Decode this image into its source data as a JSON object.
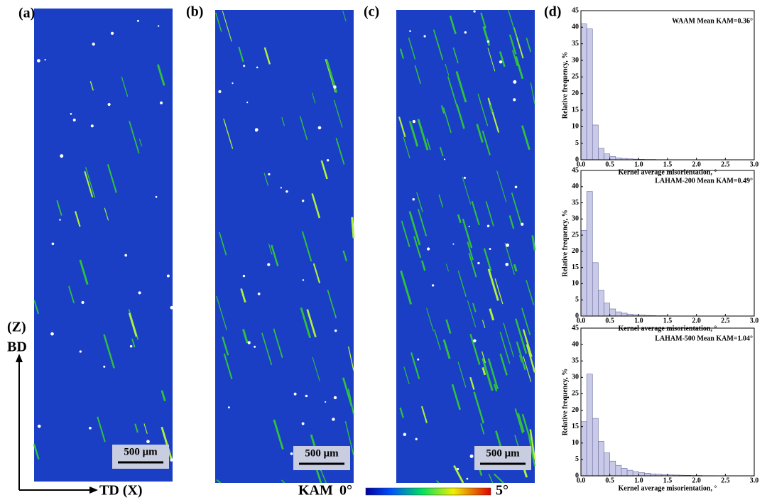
{
  "panels": [
    {
      "label": "(a)",
      "scale_bar": "500 μm"
    },
    {
      "label": "(b)",
      "scale_bar": "500 μm"
    },
    {
      "label": "(c)",
      "scale_bar": "500 μm"
    }
  ],
  "orientation": {
    "z": "(Z)",
    "bd": "BD",
    "td": "TD (X)"
  },
  "colorbar": {
    "label": "KAM",
    "min": "0°",
    "max": "5°"
  },
  "panel_d_label": "(d)",
  "chart_data": [
    {
      "type": "histogram",
      "title": "WAAM Mean KAM=0.36°",
      "xlabel": "Kernel average misorientation, °",
      "ylabel": "Relative frequency, %",
      "bins": [
        0,
        0.1,
        0.2,
        0.3,
        0.4,
        0.5,
        0.6,
        0.7,
        0.8,
        0.9,
        1.0,
        1.1,
        1.2,
        1.3,
        1.4,
        1.5,
        1.6,
        1.7,
        1.8,
        1.9,
        2.0,
        2.1,
        2.2,
        2.3,
        2.4,
        2.5,
        2.6,
        2.7,
        2.8,
        2.9,
        3.0
      ],
      "values": [
        41,
        39.5,
        10.5,
        3.5,
        1.8,
        1.0,
        0.6,
        0.4,
        0.3,
        0.2,
        0.15,
        0.1,
        0.1,
        0.05,
        0.05,
        0,
        0,
        0,
        0,
        0,
        0,
        0,
        0,
        0,
        0,
        0,
        0,
        0,
        0,
        0
      ],
      "color": "#c9c9e8",
      "xlim": [
        0,
        3.0
      ],
      "xticks": [
        {
          "value": 0,
          "label": "0.0"
        },
        0.5,
        {
          "value": 1,
          "label": "1.0"
        },
        1.5,
        {
          "value": 2,
          "label": "2.0"
        },
        2.5,
        {
          "value": 3,
          "label": "3.0"
        }
      ],
      "ylim": [
        0,
        45
      ],
      "yticks": [
        0,
        5,
        10,
        15,
        20,
        25,
        30,
        35,
        40,
        45
      ]
    },
    {
      "type": "histogram",
      "title": "LAHAM-200 Mean KAM=0.49°",
      "xlabel": "Kernel average misorientation, °",
      "ylabel": "Relative frequency, %",
      "bins": [
        0,
        0.1,
        0.2,
        0.3,
        0.4,
        0.5,
        0.6,
        0.7,
        0.8,
        0.9,
        1.0,
        1.1,
        1.2,
        1.3,
        1.4,
        1.5,
        1.6,
        1.7,
        1.8,
        1.9,
        2.0,
        2.1,
        2.2,
        2.3,
        2.4,
        2.5,
        2.6,
        2.7,
        2.8,
        2.9,
        3.0
      ],
      "values": [
        26.5,
        38.5,
        16.5,
        8,
        4,
        2.2,
        1.3,
        0.9,
        0.6,
        0.4,
        0.3,
        0.2,
        0.15,
        0.1,
        0.1,
        0.05,
        0.05,
        0,
        0,
        0,
        0,
        0,
        0,
        0,
        0,
        0,
        0,
        0,
        0,
        0
      ],
      "color": "#c9c9e8",
      "xlim": [
        0,
        3.0
      ],
      "xticks": [
        {
          "value": 0,
          "label": "0.0"
        },
        0.5,
        {
          "value": 1,
          "label": "1.0"
        },
        1.5,
        {
          "value": 2,
          "label": "2.0"
        },
        2.5,
        {
          "value": 3,
          "label": "3.0"
        }
      ],
      "ylim": [
        0,
        45
      ],
      "yticks": [
        0,
        5,
        10,
        15,
        20,
        25,
        30,
        35,
        40,
        45
      ]
    },
    {
      "type": "histogram",
      "title": "LAHAM-500 Mean KAM=1.04°",
      "xlabel": "Kernel average misorientation, °",
      "ylabel": "Relative frequency, %",
      "bins": [
        0,
        0.1,
        0.2,
        0.3,
        0.4,
        0.5,
        0.6,
        0.7,
        0.8,
        0.9,
        1.0,
        1.1,
        1.2,
        1.3,
        1.4,
        1.5,
        1.6,
        1.7,
        1.8,
        1.9,
        2.0,
        2.1,
        2.2,
        2.3,
        2.4,
        2.5,
        2.6,
        2.7,
        2.8,
        2.9,
        3.0
      ],
      "values": [
        16.5,
        31,
        17.5,
        10.5,
        7,
        4.5,
        3.2,
        2.3,
        1.7,
        1.3,
        1.0,
        0.8,
        0.6,
        0.5,
        0.4,
        0.3,
        0.25,
        0.2,
        0.15,
        0.1,
        0.1,
        0.05,
        0.05,
        0,
        0,
        0,
        0,
        0,
        0,
        0
      ],
      "color": "#c9c9e8",
      "xlim": [
        0,
        3.0
      ],
      "xticks": [
        {
          "value": 0,
          "label": "0.0"
        },
        0.5,
        {
          "value": 1,
          "label": "1.0"
        },
        1.5,
        {
          "value": 2,
          "label": "2.0"
        },
        2.5,
        {
          "value": 3,
          "label": "3.0"
        }
      ],
      "ylim": [
        0,
        45
      ],
      "yticks": [
        0,
        5,
        10,
        15,
        20,
        25,
        30,
        35,
        40,
        45
      ]
    }
  ]
}
